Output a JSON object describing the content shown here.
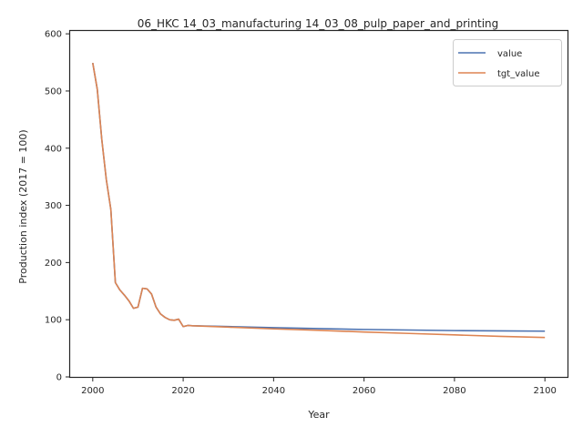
{
  "chart_data": {
    "type": "line",
    "title": "06_HKC 14_03_manufacturing 14_03_08_pulp_paper_and_printing",
    "xlabel": "Year",
    "ylabel": "Production index (2017 = 100)",
    "xlim": [
      1995,
      2105
    ],
    "ylim": [
      0,
      605
    ],
    "xticks": [
      2000,
      2020,
      2040,
      2060,
      2080,
      2100
    ],
    "yticks": [
      0,
      100,
      200,
      300,
      400,
      500,
      600
    ],
    "grid": false,
    "legend_position": "top-right",
    "series": [
      {
        "name": "value",
        "color": "#4c72b0",
        "points": [
          [
            2000,
            549
          ],
          [
            2001,
            503
          ],
          [
            2002,
            415
          ],
          [
            2003,
            345
          ],
          [
            2004,
            293
          ],
          [
            2005,
            165
          ],
          [
            2006,
            152
          ],
          [
            2007,
            143
          ],
          [
            2008,
            133
          ],
          [
            2009,
            120
          ],
          [
            2010,
            122
          ],
          [
            2011,
            155
          ],
          [
            2012,
            154
          ],
          [
            2013,
            145
          ],
          [
            2014,
            122
          ],
          [
            2015,
            110
          ],
          [
            2016,
            104
          ],
          [
            2017,
            100
          ],
          [
            2018,
            99
          ],
          [
            2019,
            101
          ],
          [
            2020,
            88
          ],
          [
            2021,
            90
          ],
          [
            2022,
            89.5
          ],
          [
            2030,
            88
          ],
          [
            2040,
            86
          ],
          [
            2050,
            84.5
          ],
          [
            2060,
            83
          ],
          [
            2070,
            82
          ],
          [
            2080,
            81
          ],
          [
            2090,
            80.5
          ],
          [
            2100,
            80
          ]
        ]
      },
      {
        "name": "tgt_value",
        "color": "#dd8452",
        "points": [
          [
            2000,
            549
          ],
          [
            2001,
            503
          ],
          [
            2002,
            415
          ],
          [
            2003,
            345
          ],
          [
            2004,
            293
          ],
          [
            2005,
            165
          ],
          [
            2006,
            152
          ],
          [
            2007,
            143
          ],
          [
            2008,
            133
          ],
          [
            2009,
            120
          ],
          [
            2010,
            122
          ],
          [
            2011,
            155
          ],
          [
            2012,
            154
          ],
          [
            2013,
            145
          ],
          [
            2014,
            122
          ],
          [
            2015,
            110
          ],
          [
            2016,
            104
          ],
          [
            2017,
            100
          ],
          [
            2018,
            99
          ],
          [
            2019,
            101
          ],
          [
            2020,
            88
          ],
          [
            2021,
            90
          ],
          [
            2022,
            89.5
          ],
          [
            2030,
            87
          ],
          [
            2040,
            84
          ],
          [
            2050,
            81.5
          ],
          [
            2060,
            78.5
          ],
          [
            2070,
            76
          ],
          [
            2080,
            73.5
          ],
          [
            2090,
            71
          ],
          [
            2100,
            69
          ]
        ]
      }
    ]
  }
}
